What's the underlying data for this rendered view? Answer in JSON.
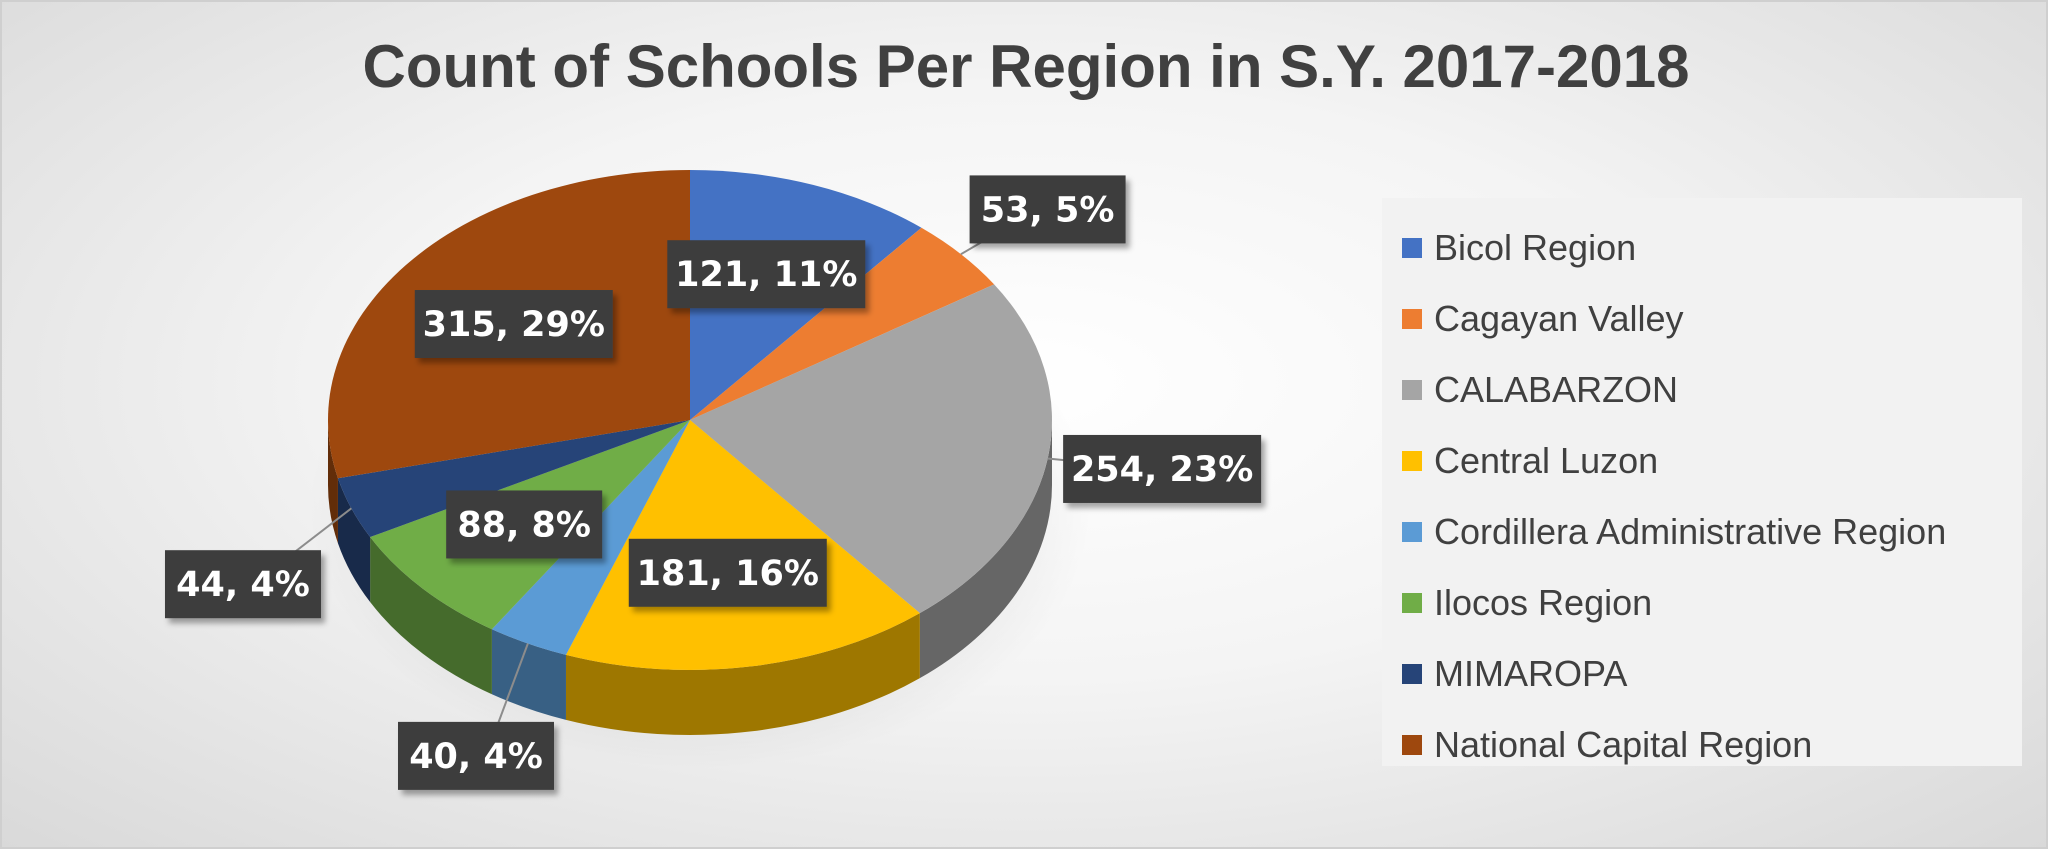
{
  "chart_data": {
    "type": "pie",
    "title": "Count of Schools Per Region in S.Y. 2017-2018",
    "categories": [
      "Bicol Region",
      "Cagayan Valley",
      "CALABARZON",
      "Central Luzon",
      "Cordillera Administrative Region",
      "Ilocos Region",
      "MIMAROPA",
      "National Capital Region"
    ],
    "values": [
      121,
      53,
      254,
      181,
      40,
      88,
      44,
      315
    ],
    "percent_labels": [
      "11%",
      "5%",
      "23%",
      "16%",
      "4%",
      "8%",
      "4%",
      "29%"
    ],
    "data_labels": [
      "121, 11%",
      "53, 5%",
      "254, 23%",
      "181, 16%",
      "40, 4%",
      "88, 8%",
      "44, 4%",
      "315, 29%"
    ],
    "colors": [
      "#4472C4",
      "#ED7D31",
      "#A5A5A5",
      "#FFC000",
      "#5B9BD5",
      "#70AD47",
      "#264478",
      "#9E480E"
    ],
    "legend_position": "right",
    "style": "3d"
  }
}
